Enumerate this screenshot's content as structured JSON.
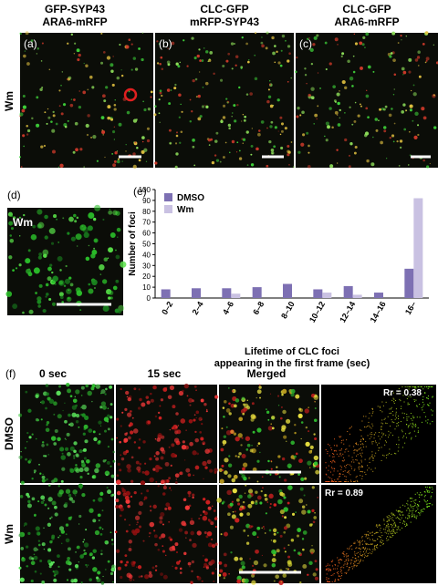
{
  "panel_a": {
    "label": "(a)",
    "header": [
      "GFP-SYP43",
      "ARA6-mRFP"
    ]
  },
  "panel_b": {
    "label": "(b)",
    "header": [
      "CLC-GFP",
      "mRFP-SYP43"
    ]
  },
  "panel_c": {
    "label": "(c)",
    "header": [
      "CLC-GFP",
      "ARA6-mRFP"
    ]
  },
  "row_label_top": "Wm",
  "panel_d": {
    "label": "(d)",
    "inset": "Wm"
  },
  "chart_data": {
    "type": "bar",
    "panel_label": "(e)",
    "categories": [
      "0–2",
      "2–4",
      "4–6",
      "6–8",
      "8–10",
      "10–12",
      "12–14",
      "14–16",
      "16–"
    ],
    "series": [
      {
        "name": "DMSO",
        "color": "#7d70b3",
        "values": [
          8,
          9,
          9,
          10,
          13,
          8,
          11,
          5,
          27
        ]
      },
      {
        "name": "Wm",
        "color": "#c9c1e2",
        "values": [
          0,
          0,
          4,
          0,
          0,
          5,
          3,
          0,
          92
        ]
      }
    ],
    "ylim": [
      0,
      100
    ],
    "yticks": [
      0,
      10,
      20,
      30,
      40,
      50,
      60,
      70,
      80,
      90,
      100
    ],
    "ylabel": "Number of foci",
    "xlabel": [
      "Lifetime of CLC foci",
      "appearing in the first frame (sec)"
    ],
    "legend": "upper left"
  },
  "panel_f": {
    "label": "(f)",
    "columns": [
      "0 sec",
      "15 sec",
      "Merged"
    ],
    "rows": [
      {
        "label": "DMSO",
        "rr": "Rr = 0.38"
      },
      {
        "label": "Wm",
        "rr": "Rr = 0.89"
      }
    ]
  }
}
